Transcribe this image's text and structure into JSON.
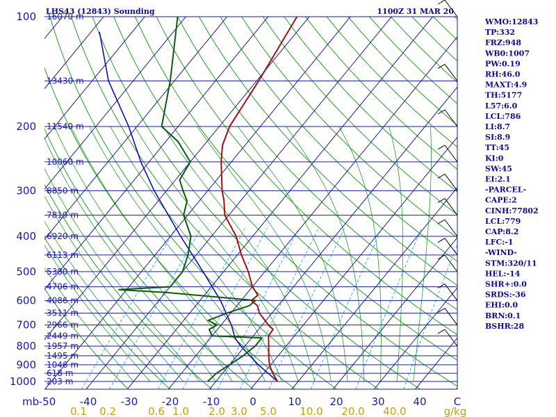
{
  "header": {
    "title": "LHS43 (12843) Sounding",
    "time": "1100Z 31 MAR 20"
  },
  "indices": [
    "WMO:12843",
    "TP:332",
    "FRZ:948",
    "WB0:1007",
    "PW:0.19",
    "RH:46.0",
    "MAXT:4.9",
    "TH:5177",
    "L57:6.0",
    "LCL:786",
    "LI:8.7",
    "SI:8.9",
    "TT:45",
    "KI:0",
    "SW:45",
    "EI:2.1",
    "-PARCEL-",
    "CAPE:2",
    "CINH:77802",
    "LCL:779",
    "CAP:8.2",
    "LFC:-1",
    "-WIND-",
    "STM:320/11",
    "HEL:-14",
    "SHR+:0.0",
    "SRDS:-36",
    "EHI:0.0",
    "BRN:0.1",
    "BSHR:28"
  ],
  "colors": {
    "isobar": "#1a1aa8",
    "isotherm": "#1a1aa8",
    "dry_adiabat": "#20a020",
    "moist_adiabat": "#20a020",
    "mixing_ratio": "#20a8e8",
    "temperature": "#a01010",
    "dewpoint": "#0a5a0a",
    "parcel": "#1010b0",
    "wind": "#000000"
  },
  "chart_data": {
    "type": "line",
    "skew_t": true,
    "pressure_levels": [
      {
        "p": 100,
        "label": "100",
        "height": "16070 m"
      },
      {
        "p": 150,
        "label": "",
        "height": "13430 m"
      },
      {
        "p": 200,
        "label": "200",
        "height": "11540 m"
      },
      {
        "p": 250,
        "label": "",
        "height": "10060 m"
      },
      {
        "p": 300,
        "label": "300",
        "height": "8850 m"
      },
      {
        "p": 350,
        "label": "",
        "height": "7819 m"
      },
      {
        "p": 400,
        "label": "400",
        "height": "6920 m"
      },
      {
        "p": 450,
        "label": "",
        "height": "6113 m"
      },
      {
        "p": 500,
        "label": "500",
        "height": "5380 m"
      },
      {
        "p": 550,
        "label": "",
        "height": "4706 m"
      },
      {
        "p": 600,
        "label": "600",
        "height": "4086 m"
      },
      {
        "p": 650,
        "label": "",
        "height": "3511 m"
      },
      {
        "p": 700,
        "label": "700",
        "height": "2966 m"
      },
      {
        "p": 750,
        "label": "",
        "height": "2449 m"
      },
      {
        "p": 800,
        "label": "800",
        "height": "1957 m"
      },
      {
        "p": 850,
        "label": "",
        "height": "1495 m"
      },
      {
        "p": 900,
        "label": "900",
        "height": "1046 m"
      },
      {
        "p": 950,
        "label": "",
        "height": "618 m"
      },
      {
        "p": 1000,
        "label": "1000",
        "height": "203 m"
      }
    ],
    "pressure_axis_label": "mb",
    "temperature_ticks": [
      "-50",
      "-40",
      "-30",
      "-20",
      "-10",
      "0",
      "10",
      "20",
      "30",
      "40",
      "C"
    ],
    "mixing_ratio_ticks": [
      "0.1",
      "0.2",
      "0.6",
      "1.0",
      "2.0",
      "3.0",
      "5.0",
      "10.0",
      "20.0",
      "40.0",
      "g/kg"
    ],
    "temperature_profile": [
      [
        1000,
        5.0
      ],
      [
        950,
        2.2
      ],
      [
        900,
        -0.3
      ],
      [
        850,
        -2.3
      ],
      [
        800,
        -4.2
      ],
      [
        750,
        -6.3
      ],
      [
        720,
        -6.5
      ],
      [
        700,
        -8.5
      ],
      [
        650,
        -13.0
      ],
      [
        620,
        -15.0
      ],
      [
        600,
        -17.5
      ],
      [
        580,
        -17.0
      ],
      [
        550,
        -20.0
      ],
      [
        500,
        -24.0
      ],
      [
        450,
        -29.0
      ],
      [
        400,
        -34.0
      ],
      [
        350,
        -41.0
      ],
      [
        320,
        -44.0
      ],
      [
        300,
        -46.5
      ],
      [
        250,
        -52.5
      ],
      [
        225,
        -55.5
      ],
      [
        200,
        -57.5
      ],
      [
        150,
        -59.5
      ],
      [
        100,
        -63.0
      ]
    ],
    "dewpoint_profile": [
      [
        1000,
        -12.0
      ],
      [
        950,
        -11.5
      ],
      [
        900,
        -10.0
      ],
      [
        850,
        -8.5
      ],
      [
        800,
        -7.5
      ],
      [
        760,
        -7.5
      ],
      [
        750,
        -20.0
      ],
      [
        720,
        -22.0
      ],
      [
        700,
        -21.0
      ],
      [
        680,
        -24.0
      ],
      [
        650,
        -21.0
      ],
      [
        620,
        -17.0
      ],
      [
        600,
        -16.5
      ],
      [
        570,
        -40.0
      ],
      [
        560,
        -52.0
      ],
      [
        550,
        -40.0
      ],
      [
        500,
        -40.0
      ],
      [
        450,
        -42.0
      ],
      [
        400,
        -45.0
      ],
      [
        350,
        -51.0
      ],
      [
        320,
        -53.0
      ],
      [
        300,
        -56.0
      ],
      [
        280,
        -59.0
      ],
      [
        250,
        -60.0
      ],
      [
        220,
        -67.0
      ],
      [
        200,
        -74.0
      ],
      [
        150,
        -81.0
      ],
      [
        100,
        -92.0
      ]
    ],
    "parcel_profile": [
      [
        1000,
        5.0
      ],
      [
        900,
        -3.0
      ],
      [
        800,
        -11.0
      ],
      [
        760,
        -14.0
      ],
      [
        700,
        -17.5
      ],
      [
        600,
        -25.0
      ],
      [
        500,
        -35.0
      ],
      [
        400,
        -47.5
      ],
      [
        300,
        -63.0
      ],
      [
        250,
        -72.0
      ],
      [
        200,
        -82.0
      ],
      [
        150,
        -96.0
      ],
      [
        110,
        -108.0
      ]
    ],
    "wind_levels_mb": [
      100,
      150,
      200,
      250,
      300,
      350,
      400,
      450,
      500,
      600,
      700,
      800
    ]
  }
}
